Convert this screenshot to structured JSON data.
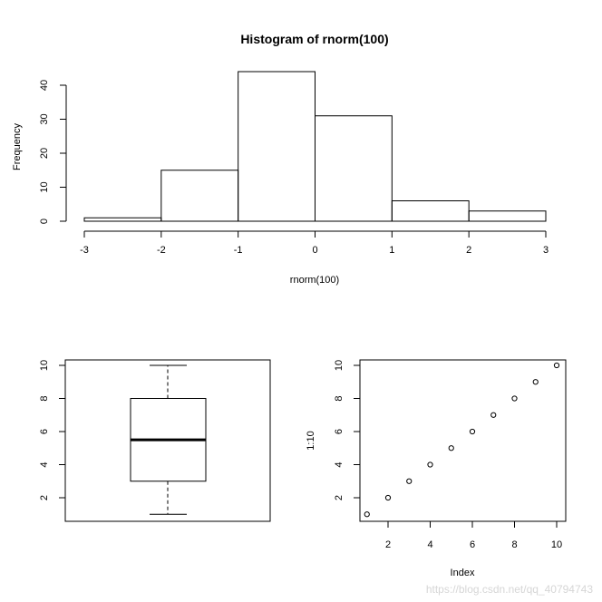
{
  "chart_data": [
    {
      "type": "bar",
      "title": "Histogram of rnorm(100)",
      "xlabel": "rnorm(100)",
      "ylabel": "Frequency",
      "bins": [
        {
          "start": -3,
          "end": -2,
          "count": 1
        },
        {
          "start": -2,
          "end": -1,
          "count": 15
        },
        {
          "start": -1,
          "end": 0,
          "count": 44
        },
        {
          "start": 0,
          "end": 1,
          "count": 31
        },
        {
          "start": 1,
          "end": 2,
          "count": 6
        },
        {
          "start": 2,
          "end": 3,
          "count": 3
        }
      ],
      "xlim": [
        -3,
        3
      ],
      "ylim": [
        0,
        44
      ],
      "xticks": [
        -3,
        -2,
        -1,
        0,
        1,
        2,
        3
      ],
      "yticks": [
        0,
        10,
        20,
        30,
        40
      ]
    },
    {
      "type": "box",
      "title": "",
      "xlabel": "",
      "ylabel": "",
      "stats": {
        "min": 1,
        "q1": 3,
        "median": 5.5,
        "q3": 8,
        "max": 10
      },
      "ylim": [
        1,
        10
      ],
      "yticks": [
        2,
        4,
        6,
        8,
        10
      ]
    },
    {
      "type": "scatter",
      "title": "",
      "xlabel": "Index",
      "ylabel": "1:10",
      "x": [
        1,
        2,
        3,
        4,
        5,
        6,
        7,
        8,
        9,
        10
      ],
      "y": [
        1,
        2,
        3,
        4,
        5,
        6,
        7,
        8,
        9,
        10
      ],
      "xlim": [
        1,
        10
      ],
      "ylim": [
        1,
        10
      ],
      "xticks": [
        2,
        4,
        6,
        8,
        10
      ],
      "yticks": [
        2,
        4,
        6,
        8,
        10
      ]
    }
  ],
  "watermark": "https://blog.csdn.net/qq_40794743"
}
